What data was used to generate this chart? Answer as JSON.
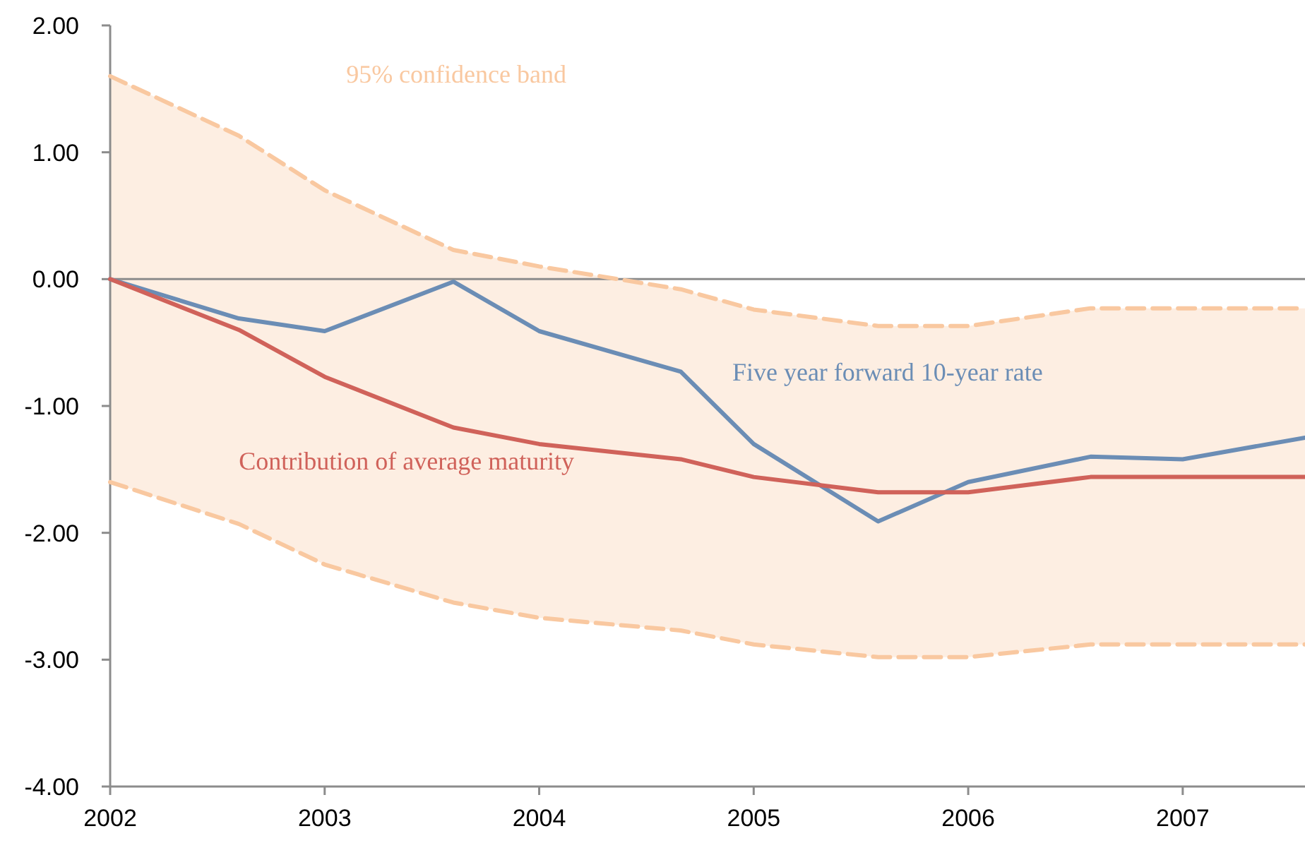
{
  "chart_data": {
    "type": "line",
    "x": [
      2002,
      2002.6,
      2003,
      2003.6,
      2004,
      2004.66,
      2005,
      2005.58,
      2006,
      2006.57,
      2007,
      2007.57
    ],
    "series": [
      {
        "name": "Five year forward 10-year rate",
        "color": "#6b8db5",
        "values": [
          0,
          -0.31,
          -0.41,
          -0.02,
          -0.41,
          -0.73,
          -1.3,
          -1.91,
          -1.6,
          -1.4,
          -1.42,
          -1.25
        ]
      },
      {
        "name": "Contribution of average maturity",
        "color": "#d0625a",
        "values": [
          0,
          -0.4,
          -0.77,
          -1.17,
          -1.3,
          -1.42,
          -1.56,
          -1.68,
          -1.68,
          -1.56,
          -1.56,
          -1.56
        ],
        "lower": [
          -1.6,
          -1.93,
          -2.25,
          -2.55,
          -2.67,
          -2.77,
          -2.88,
          -2.98,
          -2.98,
          -2.88,
          -2.88,
          -2.88
        ],
        "upper": [
          1.6,
          1.13,
          0.7,
          0.23,
          0.1,
          -0.08,
          -0.24,
          -0.37,
          -0.37,
          -0.23,
          -0.23,
          -0.23
        ]
      },
      {
        "name": "95% confidence band",
        "color": "#f9c8a0",
        "line_style": "dashed",
        "values": [
          1.6,
          1.13,
          0.7,
          0.23,
          0.1,
          -0.08,
          -0.24,
          -0.37,
          -0.37,
          -0.23,
          -0.23,
          -0.23
        ]
      },
      {
        "color": "#f9c8a0",
        "line_style": "dashed",
        "values": [
          -1.6,
          -1.93,
          -2.25,
          -2.55,
          -2.67,
          -2.77,
          -2.88,
          -2.98,
          -2.98,
          -2.88,
          -2.88,
          -2.88
        ]
      }
    ],
    "xlim": [
      2002,
      2007.57
    ],
    "xticks": [
      2002,
      2003,
      2004,
      2005,
      2006,
      2007
    ],
    "ylim": [
      -4,
      2
    ],
    "yticks": [
      {
        "value": 2,
        "label": "2.00"
      },
      {
        "value": 1,
        "label": "1.00"
      },
      {
        "value": 0,
        "label": "0.00"
      },
      {
        "value": -1,
        "label": "-1.00"
      },
      {
        "value": -2,
        "label": "-2.00"
      },
      {
        "value": -3,
        "label": "-3.00"
      },
      {
        "value": -4,
        "label": "-4.00"
      }
    ],
    "ref_lines": [
      {
        "axis": "y",
        "value": 0,
        "color": "#8c8c8c"
      }
    ],
    "legend": false,
    "grid": false,
    "marker": "none",
    "line_style": "solid"
  }
}
